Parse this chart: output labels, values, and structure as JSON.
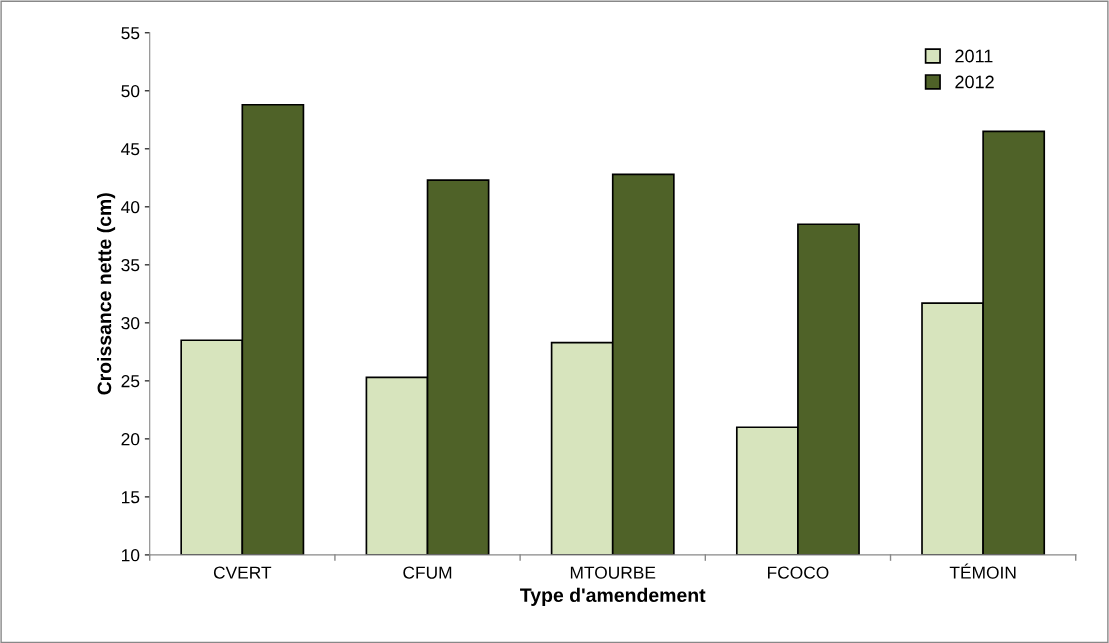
{
  "chart_data": {
    "type": "bar",
    "xlabel": "Type d'amendement",
    "ylabel": "Croissance nette (cm)",
    "categories": [
      "CVERT",
      "CFUM",
      "MTOURBE",
      "FCOCO",
      "TÉMOIN"
    ],
    "series": [
      {
        "name": "2011",
        "color": "#d7e4bd",
        "values": [
          28.5,
          25.3,
          28.3,
          21.0,
          31.7
        ]
      },
      {
        "name": "2012",
        "color": "#4f6228",
        "values": [
          48.8,
          42.3,
          42.8,
          38.5,
          46.5
        ]
      }
    ],
    "ylim": [
      10,
      55
    ],
    "yticks": [
      10,
      15,
      20,
      25,
      30,
      35,
      40,
      45,
      50,
      55
    ],
    "grid": false,
    "legend": "top right"
  }
}
